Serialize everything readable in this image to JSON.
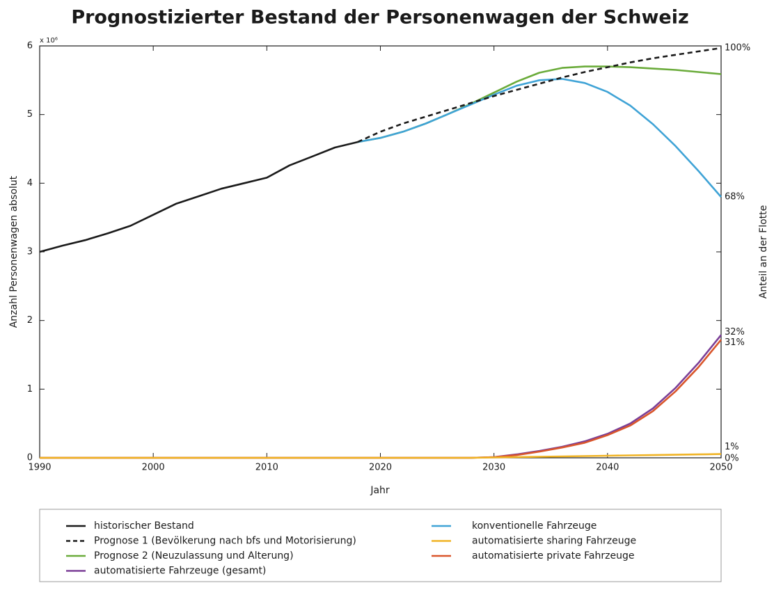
{
  "chart_data": {
    "type": "line",
    "title": "Prognostizierter Bestand der Personenwagen der Schweiz",
    "x_label": "Jahr",
    "y_label": "Anzahl Personenwagen absolut",
    "y_multiplier": "x 10⁶",
    "y2_label": "Anteil an der Flotte",
    "x": [
      1990,
      1992,
      1994,
      1996,
      1998,
      2000,
      2002,
      2004,
      2006,
      2008,
      2010,
      2012,
      2014,
      2016,
      2018,
      2020,
      2022,
      2024,
      2026,
      2028,
      2030,
      2032,
      2034,
      2036,
      2038,
      2040,
      2042,
      2044,
      2046,
      2048,
      2050
    ],
    "xlim": [
      1990,
      2050
    ],
    "xticks": [
      1990,
      2000,
      2010,
      2020,
      2030,
      2040,
      2050
    ],
    "ylim": [
      0,
      6
    ],
    "yticks": [
      0,
      1,
      2,
      3,
      4,
      5,
      6
    ],
    "series": [
      {
        "name": "historischer Bestand",
        "color": "#1a1a1a",
        "dashed": false,
        "values": [
          3.0,
          3.09,
          3.17,
          3.27,
          3.38,
          3.54,
          3.7,
          3.81,
          3.92,
          4.0,
          4.08,
          4.26,
          4.39,
          4.52,
          4.6,
          null,
          null,
          null,
          null,
          null,
          null,
          null,
          null,
          null,
          null,
          null,
          null,
          null,
          null,
          null,
          null
        ]
      },
      {
        "name": "Prognose 1 (Bevölkerung nach bfs und Motorisierung)",
        "color": "#1a1a1a",
        "dashed": true,
        "end_label": "100%",
        "values": [
          null,
          null,
          null,
          null,
          null,
          null,
          null,
          null,
          null,
          null,
          null,
          null,
          null,
          null,
          4.6,
          4.75,
          4.87,
          4.97,
          5.07,
          5.17,
          5.27,
          5.36,
          5.45,
          5.54,
          5.62,
          5.69,
          5.76,
          5.82,
          5.87,
          5.92,
          5.97
        ]
      },
      {
        "name": "Prognose 2 (Neuzulassung und Alterung)",
        "color": "#6aab3a",
        "dashed": false,
        "values": [
          null,
          null,
          null,
          null,
          null,
          null,
          null,
          null,
          null,
          null,
          null,
          null,
          null,
          null,
          4.6,
          4.66,
          4.75,
          4.87,
          5.01,
          5.16,
          5.32,
          5.48,
          5.61,
          5.68,
          5.7,
          5.7,
          5.69,
          5.67,
          5.65,
          5.62,
          5.59
        ]
      },
      {
        "name": "automatisierte Fahrzeuge (gesamt)",
        "color": "#7b3f97",
        "dashed": false,
        "end_label": "32%",
        "values": [
          0,
          0,
          0,
          0,
          0,
          0,
          0,
          0,
          0,
          0,
          0,
          0,
          0,
          0,
          0,
          0,
          0,
          0,
          0,
          0,
          0.01,
          0.05,
          0.1,
          0.16,
          0.24,
          0.35,
          0.5,
          0.72,
          1.02,
          1.38,
          1.79
        ]
      },
      {
        "name": "konventionelle Fahrzeuge",
        "color": "#3fa3d6",
        "dashed": false,
        "end_label": "68%",
        "values": [
          null,
          null,
          null,
          null,
          null,
          null,
          null,
          null,
          null,
          null,
          null,
          null,
          null,
          null,
          4.6,
          4.66,
          4.75,
          4.87,
          5.01,
          5.15,
          5.29,
          5.42,
          5.5,
          5.52,
          5.46,
          5.33,
          5.13,
          4.86,
          4.54,
          4.18,
          3.8
        ]
      },
      {
        "name": "automatisierte sharing Fahrzeuge",
        "color": "#f0b323",
        "dashed": false,
        "end_label": "1%",
        "values": [
          0,
          0,
          0,
          0,
          0,
          0,
          0,
          0,
          0,
          0,
          0,
          0,
          0,
          0,
          0,
          0,
          0,
          0,
          0,
          0,
          0.005,
          0.01,
          0.015,
          0.02,
          0.025,
          0.03,
          0.035,
          0.04,
          0.045,
          0.05,
          0.055
        ]
      },
      {
        "name": "automatisierte private Fahrzeuge",
        "color": "#d9552b",
        "dashed": false,
        "end_label": "31%",
        "values": [
          0,
          0,
          0,
          0,
          0,
          0,
          0,
          0,
          0,
          0,
          0,
          0,
          0,
          0,
          0,
          0,
          0,
          0,
          0,
          0,
          0.01,
          0.04,
          0.09,
          0.15,
          0.22,
          0.33,
          0.47,
          0.68,
          0.97,
          1.32,
          1.72
        ]
      }
    ],
    "annotations": [
      {
        "text": "0%",
        "y": 0
      }
    ]
  }
}
